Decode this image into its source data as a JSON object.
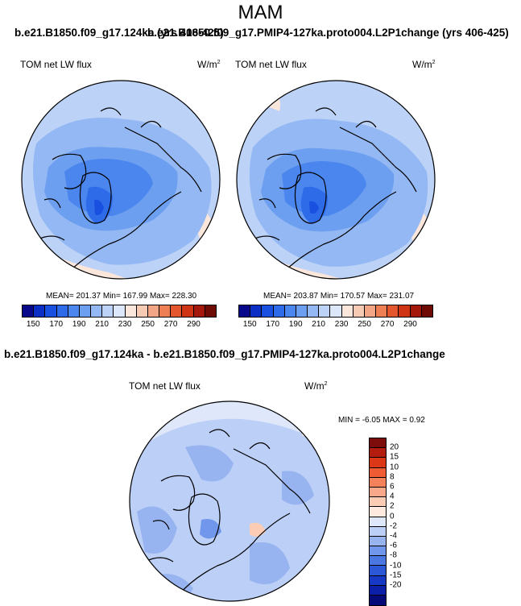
{
  "title": "MAM",
  "top_left": {
    "header": "b.e21.B1850.f09_g17.124ka (yrs 406-425)",
    "variable": "TOM net LW flux",
    "units_base": "W/m",
    "units_exp": "2",
    "stats": "MEAN= 201.37  Min= 167.99  Max= 228.30"
  },
  "top_right": {
    "header": "b.e21.B1850.f09_g17.PMIP4-127ka.proto004.L2P1change (yrs 406-425)",
    "variable": "TOM net LW flux",
    "units_base": "W/m",
    "units_exp": "2",
    "stats": "MEAN= 203.87  Min= 170.57  Max= 231.07"
  },
  "diff": {
    "header": "b.e21.B1850.f09_g17.124ka - b.e21.B1850.f09_g17.PMIP4-127ka.proto004.L2P1change",
    "variable": "TOM net LW flux",
    "units_base": "W/m",
    "units_exp": "2",
    "stats": "MIN =  -6.05 MAX =   0.92"
  },
  "colorbar_abs": {
    "colors": [
      "#08088a",
      "#0b2fc4",
      "#1a50df",
      "#2e6be8",
      "#4a86ee",
      "#6d9ff0",
      "#94b8f3",
      "#bcd2f7",
      "#dde7fb",
      "#fbe6dc",
      "#f7cbb3",
      "#f3a685",
      "#ee7f55",
      "#e4572e",
      "#cf3414",
      "#a3180a",
      "#6e0b05"
    ],
    "ticks": [
      "150",
      "170",
      "190",
      "210",
      "230",
      "250",
      "270",
      "290"
    ]
  },
  "colorbar_diff": {
    "colors": [
      "#7d0c0c",
      "#b31d10",
      "#dc3818",
      "#ef5c33",
      "#f5825a",
      "#f9a889",
      "#fccdb4",
      "#feeadf",
      "#dfe8fb",
      "#bccff7",
      "#97b4f0",
      "#7097eb",
      "#4a77e2",
      "#2c57d6",
      "#1638c4",
      "#0b1fa8",
      "#050a78"
    ],
    "ticks": [
      "20",
      "15",
      "10",
      "8",
      "6",
      "4",
      "2",
      "0",
      "-2",
      "-4",
      "-6",
      "-8",
      "-10",
      "-15",
      "-20"
    ]
  }
}
